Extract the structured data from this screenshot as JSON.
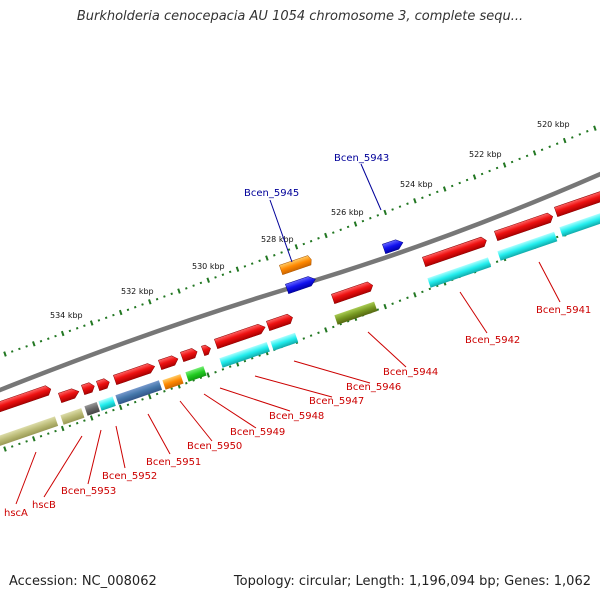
{
  "title": "Burkholderia cenocepacia AU 1054 chromosome 3, complete sequ...",
  "footer": {
    "accession": "Accession: NC_008062",
    "summary": "Topology: circular; Length: 1,196,094 bp; Genes: 1,062"
  },
  "ruler": {
    "labels": [
      "520 kbp",
      "522 kbp",
      "524 kbp",
      "526 kbp",
      "528 kbp",
      "530 kbp",
      "532 kbp",
      "534 kbp"
    ]
  },
  "genes": {
    "hscA": "hscA",
    "hscB": "hscB",
    "bcen_5953": "Bcen_5953",
    "bcen_5952": "Bcen_5952",
    "bcen_5951": "Bcen_5951",
    "bcen_5950": "Bcen_5950",
    "bcen_5949": "Bcen_5949",
    "bcen_5948": "Bcen_5948",
    "bcen_5947": "Bcen_5947",
    "bcen_5946": "Bcen_5946",
    "bcen_5945": "Bcen_5945",
    "bcen_5944": "Bcen_5944",
    "bcen_5943": "Bcen_5943",
    "bcen_5942": "Bcen_5942",
    "bcen_5941": "Bcen_5941"
  },
  "colors": {
    "cds": "#ee1111",
    "cds_product": "#22eeee",
    "rna": "#2222ee",
    "other_orange": "#ff8800",
    "other_olive": "#779922",
    "other_khaki": "#bbbb77",
    "other_steel": "#4477aa",
    "other_green": "#22cc22",
    "other_gray": "#666666",
    "backbone": "#777777",
    "ruler": "#227722",
    "label_red": "#cc0000",
    "label_blue": "#000099"
  }
}
